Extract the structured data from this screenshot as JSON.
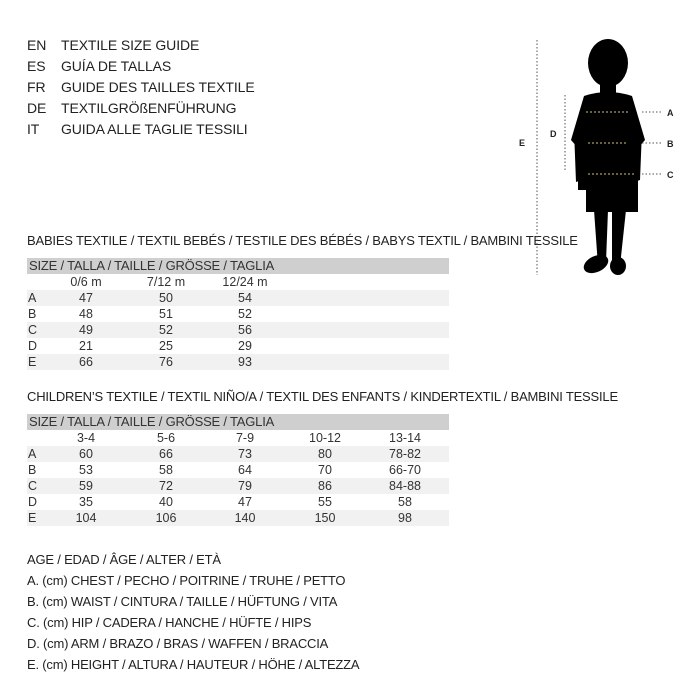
{
  "header": [
    {
      "lang": "EN",
      "text": "TEXTILE SIZE GUIDE"
    },
    {
      "lang": "ES",
      "text": "GUÍA DE TALLAS"
    },
    {
      "lang": "FR",
      "text": "GUIDE DES TAILLES TEXTILE"
    },
    {
      "lang": "DE",
      "text": "TEXTILGRÖßENFÜHRUNG"
    },
    {
      "lang": "IT",
      "text": "GUIDA ALLE TAGLIE TESSILI"
    }
  ],
  "babies": {
    "title": "BABIES TEXTILE / TEXTIL BEBÉS / TESTILE DES BÉBÉS / BABYS TEXTIL / BAMBINI TESSILE",
    "size_label": "SIZE / TALLA / TAILLE / GRÖSSE / TAGLIA",
    "columns": [
      "0/6 m",
      "7/12 m",
      "12/24 m"
    ],
    "rows": [
      {
        "label": "A",
        "values": [
          "47",
          "50",
          "54"
        ]
      },
      {
        "label": "B",
        "values": [
          "48",
          "51",
          "52"
        ]
      },
      {
        "label": "C",
        "values": [
          "49",
          "52",
          "56"
        ]
      },
      {
        "label": "D",
        "values": [
          "21",
          "25",
          "29"
        ]
      },
      {
        "label": "E",
        "values": [
          "66",
          "76",
          "93"
        ]
      }
    ]
  },
  "children": {
    "title": "CHILDREN’S TEXTILE / TEXTIL NIÑO/A / TEXTIL DES ENFANTS / KINDERTEXTIL / BAMBINI TESSILE",
    "size_label": "SIZE / TALLA / TAILLE / GRÖSSE / TAGLIA",
    "columns": [
      "3-4",
      "5-6",
      "7-9",
      "10-12",
      "13-14"
    ],
    "rows": [
      {
        "label": "A",
        "values": [
          "60",
          "66",
          "73",
          "80",
          "78-82"
        ]
      },
      {
        "label": "B",
        "values": [
          "53",
          "58",
          "64",
          "70",
          "66-70"
        ]
      },
      {
        "label": "C",
        "values": [
          "59",
          "72",
          "79",
          "86",
          "84-88"
        ]
      },
      {
        "label": "D",
        "values": [
          "35",
          "40",
          "47",
          "55",
          "58"
        ]
      },
      {
        "label": "E",
        "values": [
          "104",
          "106",
          "140",
          "150",
          "98"
        ]
      }
    ]
  },
  "legend": [
    "AGE / EDAD / ÂGE / ALTER / ETÀ",
    "A. (cm) CHEST / PECHO / POITRINE / TRUHE / PETTO",
    "B. (cm) WAIST / CINTURA / TAILLE / HÜFTUNG / VITA",
    "C. (cm) HIP / CADERA / HANCHE / HÜFTE / HIPS",
    "D. (cm) ARM / BRAZO / BRAS / WAFFEN / BRACCIA",
    "E. (cm) HEIGHT / ALTURA / HAUTEUR / HÖHE / ALTEZZA"
  ],
  "figure": {
    "labels": {
      "a": "A",
      "b": "B",
      "c": "C",
      "d": "D",
      "e": "E"
    },
    "measure_line_color": "#d9c27a"
  }
}
